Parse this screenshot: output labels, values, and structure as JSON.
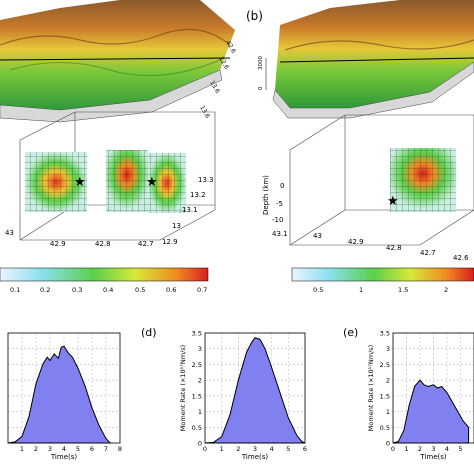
{
  "panels": {
    "b_label": "(b)",
    "d_label": "(d)",
    "e_label": "(e)"
  },
  "panel_a": {
    "top_axis_ticks": [
      "42.6",
      "12.6",
      "13.6",
      "13.6"
    ],
    "lower_y_ticks": [
      "13.3",
      "13.2",
      "13.1",
      "13",
      "12.9"
    ],
    "lower_x_ticks": [
      "43",
      "42.9",
      "42.8",
      "42.7"
    ],
    "colorbar_ticks": [
      "0.1",
      "0.2",
      "0.3",
      "0.4",
      "0.5",
      "0.6",
      "0.7"
    ]
  },
  "panel_b": {
    "elev_ticks": [
      "3000",
      "0"
    ],
    "depth_label": "Depth (km)",
    "depth_ticks": [
      "0",
      "-5",
      "-10"
    ],
    "lower_x_ticks": [
      "43.1",
      "43",
      "42.9",
      "42.8",
      "42.7",
      "42.6"
    ],
    "colorbar_ticks": [
      "0.5",
      "1",
      "1.5",
      "2"
    ]
  },
  "colors": {
    "fill": "#8080f0",
    "stroke": "#000000",
    "grid": "#b0b0b0"
  },
  "chart_data": [
    {
      "type": "area",
      "panel": "c",
      "title": "",
      "xlabel": "Time(s)",
      "ylabel": "",
      "xlim": [
        0,
        8
      ],
      "ylim": [
        0,
        5
      ],
      "x_ticks": [
        "1",
        "2",
        "3",
        "4",
        "5",
        "6",
        "7",
        "8"
      ],
      "x": [
        0,
        0.5,
        1,
        1.5,
        2,
        2.5,
        2.8,
        3.0,
        3.3,
        3.6,
        3.8,
        4.0,
        4.3,
        4.6,
        5.0,
        5.5,
        6.0,
        6.5,
        7.0,
        7.3
      ],
      "values": [
        0,
        0.05,
        0.3,
        1.2,
        2.7,
        3.6,
        3.9,
        3.75,
        4.05,
        3.85,
        4.35,
        4.4,
        4.1,
        3.9,
        3.4,
        2.6,
        1.6,
        0.8,
        0.2,
        0
      ]
    },
    {
      "type": "area",
      "panel": "d",
      "title": "",
      "xlabel": "Time(s)",
      "ylabel": "Moment Rate (×10¹⁷Nm/s)",
      "xlim": [
        0,
        6
      ],
      "ylim": [
        0,
        3.5
      ],
      "y_ticks": [
        "0",
        "0.5",
        "1",
        "1.5",
        "2",
        "2.5",
        "3",
        "3.5"
      ],
      "x_ticks": [
        "0",
        "1",
        "2",
        "3",
        "4",
        "5",
        "6"
      ],
      "x": [
        0,
        0.5,
        1.0,
        1.5,
        2.0,
        2.5,
        2.8,
        3.0,
        3.3,
        3.6,
        4.0,
        4.5,
        5.0,
        5.5,
        5.8,
        6.0
      ],
      "values": [
        0,
        0.02,
        0.2,
        0.9,
        2.0,
        2.9,
        3.2,
        3.35,
        3.3,
        3.0,
        2.4,
        1.6,
        0.8,
        0.25,
        0.05,
        0
      ]
    },
    {
      "type": "area",
      "panel": "e",
      "title": "",
      "xlabel": "Time(s)",
      "ylabel": "Moment Rate (×10¹⁷Nm/s)",
      "xlim": [
        0,
        6
      ],
      "ylim": [
        0,
        3.5
      ],
      "y_ticks": [
        "0",
        "0.5",
        "1",
        "1.5",
        "2",
        "2.5",
        "3",
        "3.5"
      ],
      "x_ticks": [
        "0",
        "1",
        "2",
        "3",
        "4",
        "5"
      ],
      "x": [
        0,
        0.4,
        0.8,
        1.2,
        1.6,
        2.0,
        2.3,
        2.6,
        3.0,
        3.3,
        3.6,
        4.0,
        4.4,
        4.8,
        5.2,
        5.6
      ],
      "values": [
        0,
        0.05,
        0.4,
        1.2,
        1.8,
        2.0,
        1.85,
        1.8,
        1.85,
        1.75,
        1.8,
        1.6,
        1.3,
        1.0,
        0.7,
        0.5
      ]
    }
  ]
}
